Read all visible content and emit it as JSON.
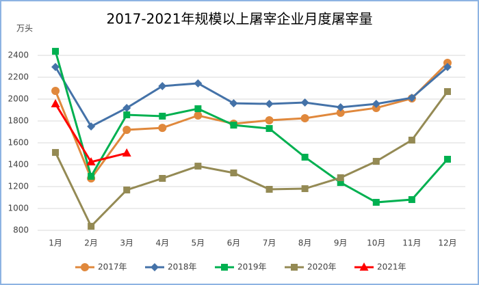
{
  "chart_data": {
    "type": "line",
    "title": "2017-2021年规模以上屠宰企业月度屠宰量",
    "y_label": "万头",
    "categories": [
      "1月",
      "2月",
      "3月",
      "4月",
      "5月",
      "6月",
      "7月",
      "8月",
      "9月",
      "10月",
      "11月",
      "12月"
    ],
    "series": [
      {
        "name": "2017年",
        "color": "#e0883c",
        "marker": "circle",
        "values": [
          2075,
          1275,
          1719,
          1737,
          1850,
          1775,
          1806,
          1825,
          1875,
          1919,
          2006,
          2331
        ]
      },
      {
        "name": "2018年",
        "color": "#4472a8",
        "marker": "diamond",
        "values": [
          2294,
          1750,
          1919,
          2119,
          2144,
          1962,
          1956,
          1969,
          1925,
          1956,
          2012,
          2294
        ]
      },
      {
        "name": "2019年",
        "color": "#00b050",
        "marker": "square",
        "values": [
          2437,
          1294,
          1856,
          1844,
          1912,
          1762,
          1731,
          1469,
          1237,
          1056,
          1081,
          1450
        ]
      },
      {
        "name": "2020年",
        "color": "#948a54",
        "marker": "square",
        "values": [
          1512,
          837,
          1169,
          1275,
          1387,
          1325,
          1175,
          1181,
          1281,
          1431,
          1625,
          2069
        ]
      },
      {
        "name": "2021年",
        "color": "#ff0000",
        "marker": "triangle",
        "values": [
          1956,
          1425,
          1506,
          null,
          null,
          null,
          null,
          null,
          null,
          null,
          null,
          null
        ]
      }
    ],
    "ylim": [
      800,
      2400
    ],
    "yticks": [
      800,
      1000,
      1200,
      1400,
      1600,
      1800,
      2000,
      2200,
      2400
    ],
    "grid": true,
    "legend": "bottom"
  }
}
